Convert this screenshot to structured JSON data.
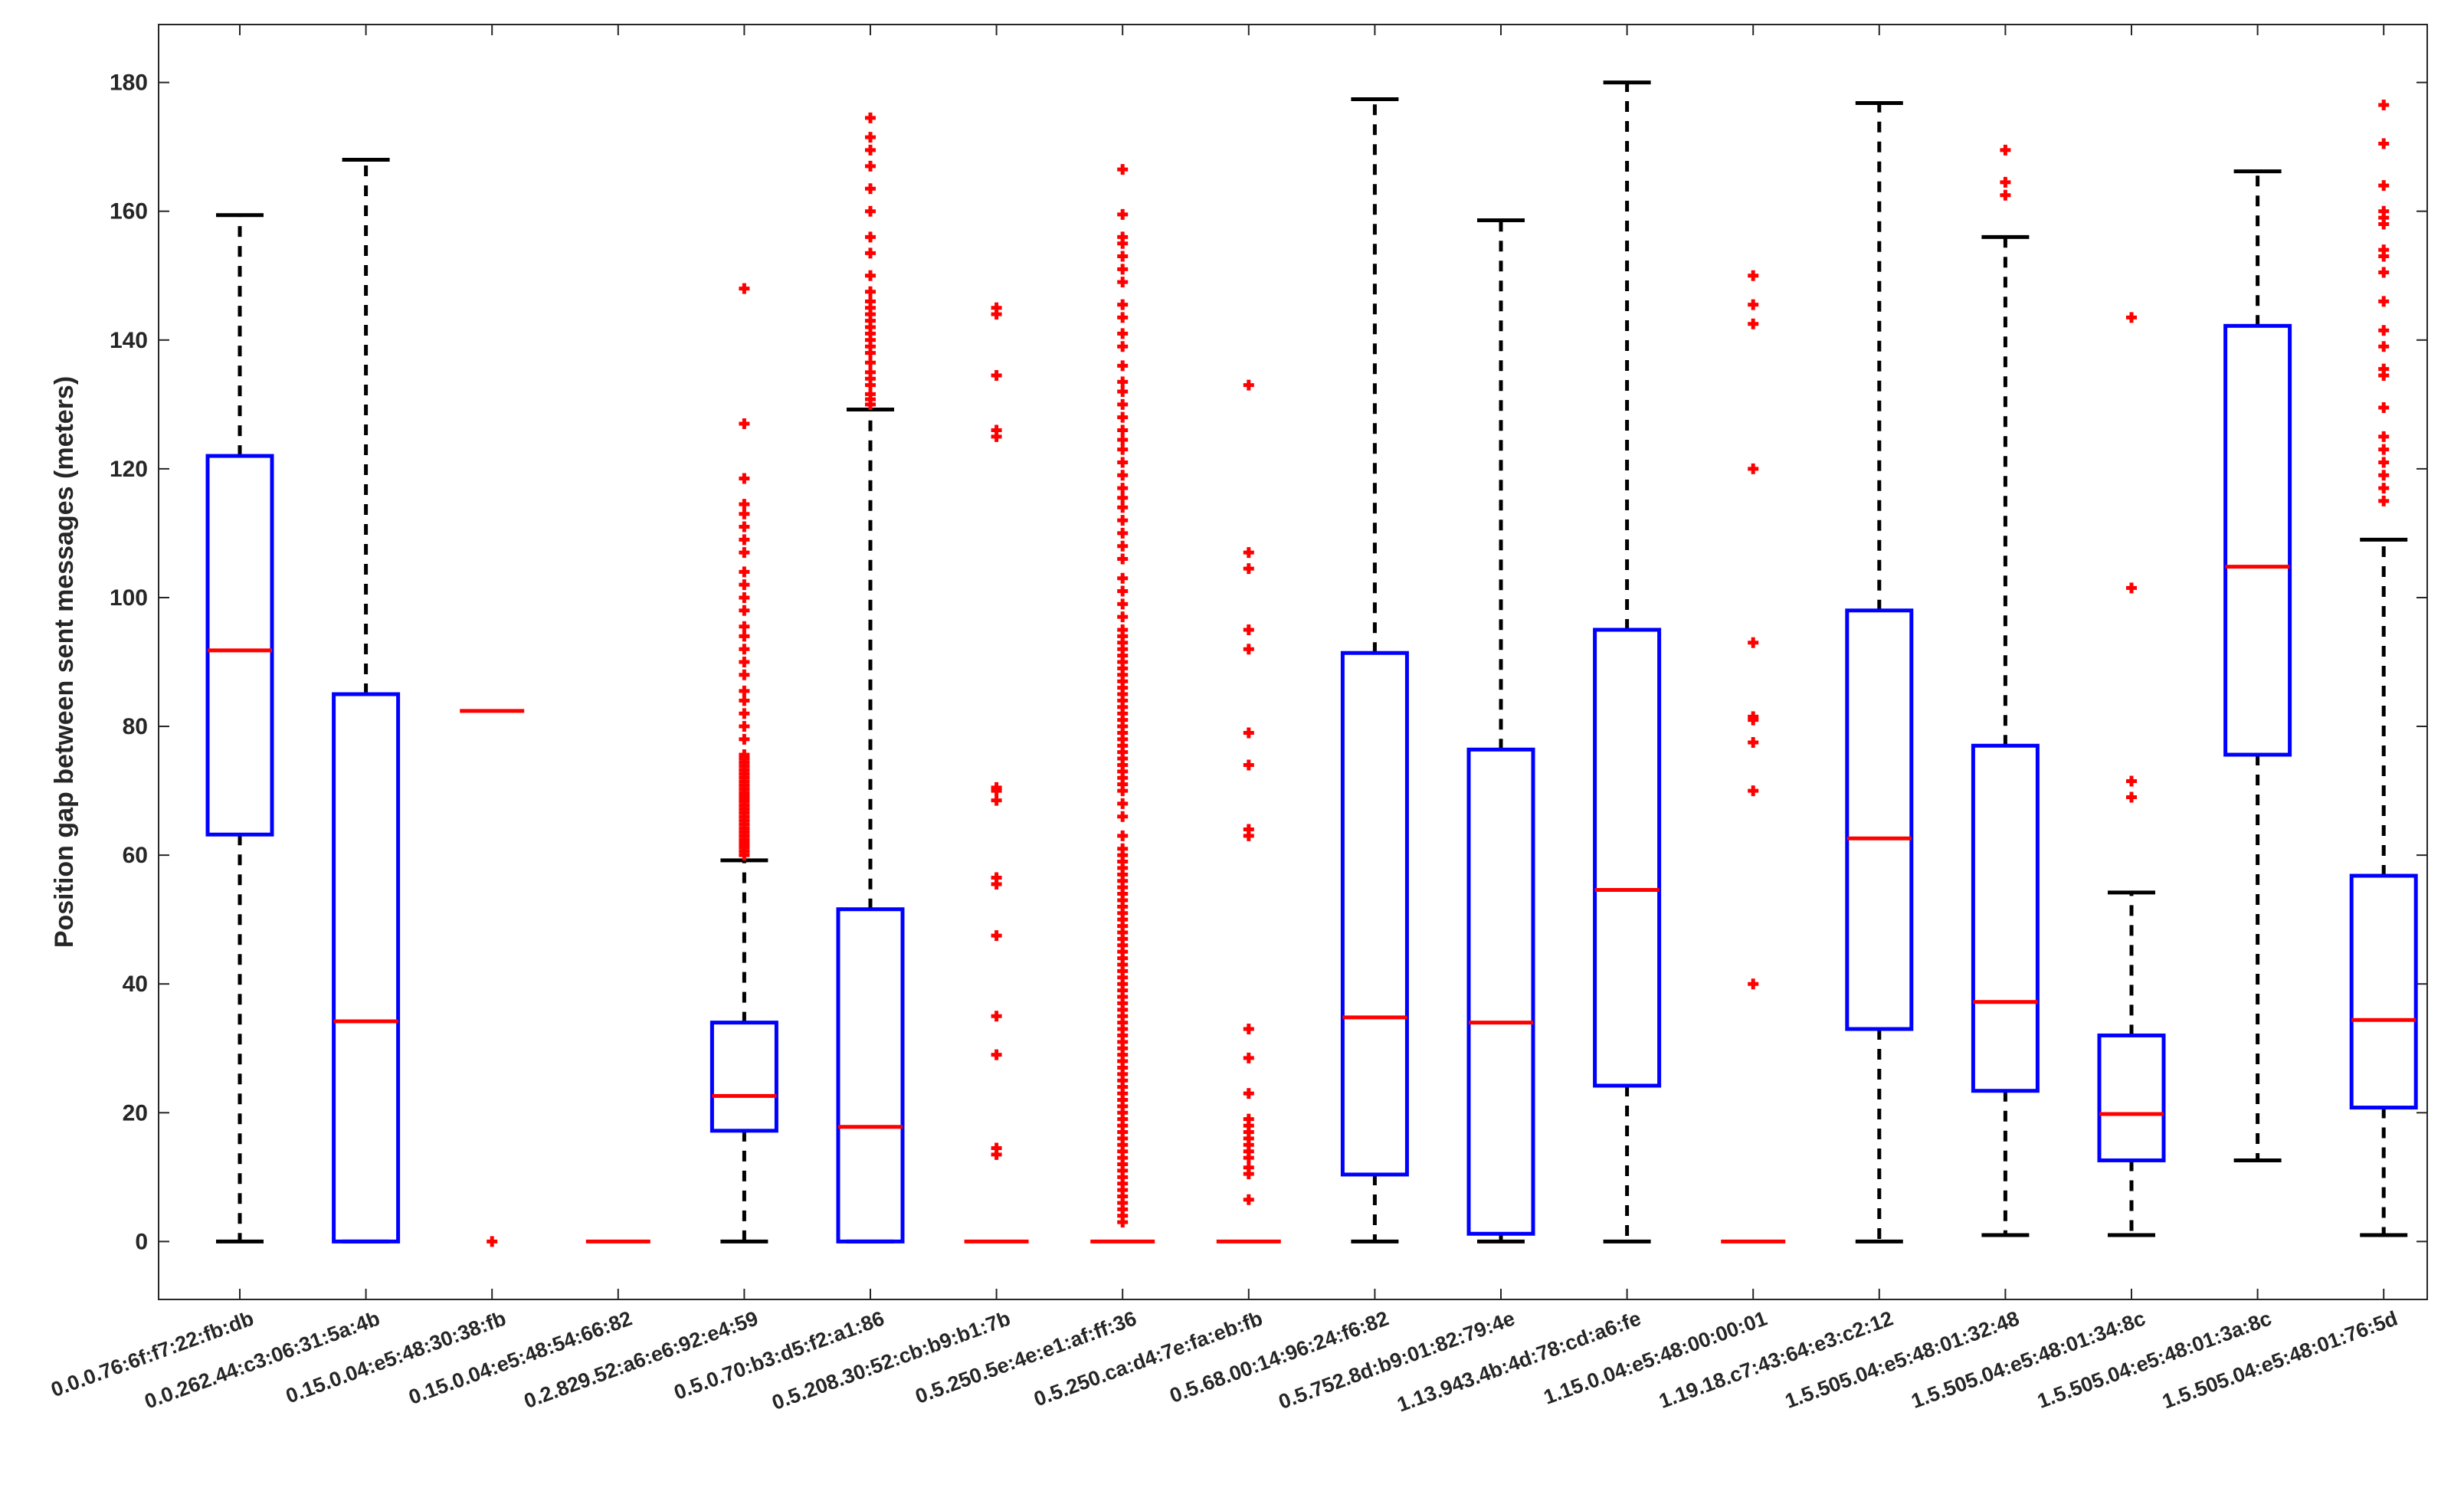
{
  "chart_data": {
    "type": "boxplot",
    "title": "",
    "xlabel": "",
    "ylabel": "Position gap between sent messages (meters)",
    "ylim": [
      -9,
      189
    ],
    "yticks": [
      0,
      20,
      40,
      60,
      80,
      100,
      120,
      140,
      160,
      180
    ],
    "grid": false,
    "colors": {
      "box": "#0000ff",
      "median": "#ff0000",
      "whisker": "#000000",
      "outlier": "#ff0000"
    },
    "categories": [
      "0.0.0.76:6f:f7:22:fb:db",
      "0.0.262.44:c3:06:31:5a:4b",
      "0.15.0.04:e5:48:30:38:fb",
      "0.15.0.04:e5:48:54:66:82",
      "0.2.829.52:a6:e6:92:e4:59",
      "0.5.0.70:b3:d5:f2:a1:86",
      "0.5.208.30:52:cb:b9:b1:7b",
      "0.5.250.5e:4e:e1:af:ff:36",
      "0.5.250.ca:d4:7e:fa:eb:fb",
      "0.5.68.00:14:96:24:f6:82",
      "0.5.752.8d:b9:01:82:79:4e",
      "1.13.943.4b:4d:78:cd:a6:fe",
      "1.15.0.04:e5:48:00:00:01",
      "1.19.18.c7:43:64:e3:c2:12",
      "1.5.505.04:e5:48:01:32:48",
      "1.5.505.04:e5:48:01:34:8c",
      "1.5.505.04:e5:48:01:3a:8c",
      "1.5.505.04:e5:48:01:76:5d"
    ],
    "boxes": [
      {
        "whisker_low": 0,
        "q1": 63.2,
        "median": 91.8,
        "q3": 122.0,
        "whisker_high": 159.4,
        "outliers": []
      },
      {
        "whisker_low": 0,
        "q1": 0,
        "median": 34.2,
        "q3": 85.0,
        "whisker_high": 168.0,
        "outliers": []
      },
      {
        "whisker_low": 82.4,
        "q1": 82.4,
        "median": 82.4,
        "q3": 82.4,
        "whisker_high": 82.4,
        "outliers": [
          0
        ]
      },
      {
        "whisker_low": 0,
        "q1": 0,
        "median": 0,
        "q3": 0,
        "whisker_high": 0,
        "outliers": []
      },
      {
        "whisker_low": 0,
        "q1": 17.2,
        "median": 22.6,
        "q3": 34.0,
        "whisker_high": 59.2,
        "outliers": [
          60,
          60.6,
          61.2,
          61.8,
          62.4,
          63,
          63.6,
          64.2,
          64.8,
          65.4,
          66,
          66.6,
          67.2,
          67.8,
          68.4,
          69,
          69.6,
          70.2,
          70.8,
          71.4,
          72,
          72.6,
          73.2,
          73.8,
          74.4,
          75,
          75.6,
          78,
          80,
          82,
          84,
          85.5,
          88,
          90,
          92,
          94,
          95.5,
          98,
          100,
          102,
          104,
          107,
          109,
          111,
          113,
          114.5,
          118.5,
          127,
          148
        ]
      },
      {
        "whisker_low": 0,
        "q1": 0,
        "median": 17.8,
        "q3": 51.6,
        "whisker_high": 129.2,
        "outliers": [
          130,
          130.8,
          131.6,
          133,
          134,
          135,
          136.5,
          138,
          139,
          140,
          141,
          142,
          143,
          144,
          145,
          146,
          147.5,
          150,
          153.5,
          156,
          160,
          163.5,
          167,
          169.5,
          171.5,
          174.5
        ]
      },
      {
        "whisker_low": 0,
        "q1": 0,
        "median": 0,
        "q3": 0,
        "whisker_high": 0,
        "outliers": [
          13.5,
          14.5,
          29,
          35,
          47.5,
          55.5,
          56.5,
          68.5,
          70,
          70.5,
          125,
          126,
          134.5,
          144,
          145
        ]
      },
      {
        "whisker_low": 0,
        "q1": 0,
        "median": 0,
        "q3": 0,
        "whisker_high": 0,
        "outliers": [
          3,
          4,
          5,
          6,
          7,
          8,
          9,
          10,
          11,
          12,
          13,
          14,
          15,
          16,
          17,
          18,
          19,
          20,
          21,
          22,
          23,
          24,
          25,
          26,
          27,
          28,
          29,
          30,
          31,
          32,
          33,
          34,
          35,
          36,
          37,
          38,
          39,
          40,
          41,
          42,
          43,
          44,
          45,
          46,
          47,
          48,
          49,
          50,
          51,
          52,
          53,
          54,
          55,
          56,
          57,
          58,
          59,
          60,
          61,
          63,
          66,
          68,
          70,
          71,
          72,
          73,
          74,
          75,
          76,
          77,
          78,
          79,
          80,
          81,
          82,
          83,
          84,
          85,
          86,
          87,
          88,
          89,
          90,
          91,
          92,
          93,
          94,
          95,
          97,
          99,
          101,
          103,
          106,
          108,
          110,
          112,
          114,
          115.5,
          117,
          119,
          121,
          123,
          124.5,
          126,
          128,
          130,
          132,
          133.5,
          136,
          139,
          141,
          143.5,
          145.5,
          149,
          151,
          153,
          155,
          156,
          159.5,
          166.5
        ]
      },
      {
        "whisker_low": 0,
        "q1": 0,
        "median": 0,
        "q3": 0,
        "whisker_high": 0,
        "outliers": [
          6.5,
          10.5,
          11.5,
          13,
          14,
          15,
          16,
          17,
          18,
          19,
          23,
          28.5,
          33,
          63,
          64,
          74,
          79,
          92,
          95,
          104.5,
          107,
          133
        ]
      },
      {
        "whisker_low": 0,
        "q1": 10.4,
        "median": 34.8,
        "q3": 91.4,
        "whisker_high": 177.4,
        "outliers": []
      },
      {
        "whisker_low": 0,
        "q1": 1.2,
        "median": 34.0,
        "q3": 76.4,
        "whisker_high": 158.6,
        "outliers": []
      },
      {
        "whisker_low": 0,
        "q1": 24.2,
        "median": 54.6,
        "q3": 95.0,
        "whisker_high": 180.0,
        "outliers": []
      },
      {
        "whisker_low": 0,
        "q1": 0,
        "median": 0,
        "q3": 0,
        "whisker_high": 0,
        "outliers": [
          40,
          70,
          77.5,
          81,
          81.5,
          93,
          120,
          142.5,
          145.5,
          150
        ]
      },
      {
        "whisker_low": 0,
        "q1": 33.0,
        "median": 62.6,
        "q3": 98.0,
        "whisker_high": 176.8,
        "outliers": []
      },
      {
        "whisker_low": 1.0,
        "q1": 23.4,
        "median": 37.2,
        "q3": 77.0,
        "whisker_high": 156.0,
        "outliers": [
          162.5,
          164.5,
          169.5
        ]
      },
      {
        "whisker_low": 1.0,
        "q1": 12.6,
        "median": 19.8,
        "q3": 32.0,
        "whisker_high": 54.2,
        "outliers": [
          69,
          71.5,
          101.5,
          143.5
        ]
      },
      {
        "whisker_low": 12.6,
        "q1": 75.6,
        "median": 104.8,
        "q3": 142.2,
        "whisker_high": 166.2,
        "outliers": []
      },
      {
        "whisker_low": 1.0,
        "q1": 20.8,
        "median": 34.4,
        "q3": 56.8,
        "whisker_high": 109.0,
        "outliers": [
          115,
          117,
          119,
          121,
          123,
          125,
          129.5,
          134.5,
          135.5,
          139,
          141.5,
          146,
          150.5,
          153,
          154,
          158,
          159,
          160,
          164,
          170.5,
          176.5
        ]
      }
    ]
  }
}
